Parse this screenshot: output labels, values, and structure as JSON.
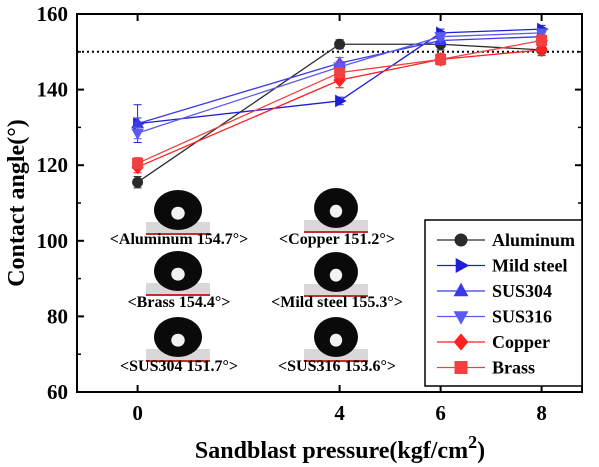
{
  "chart_data": {
    "type": "line",
    "title": "",
    "xlabel": "Sandblast pressure(kgf/cm",
    "xlabel_sup": "2",
    "xlabel_close": ")",
    "ylabel": "Contact angle(°)",
    "xlim": [
      -1.2,
      8.8
    ],
    "ylim": [
      60,
      160
    ],
    "x_ticks": [
      "0",
      "4",
      "6",
      "8"
    ],
    "y_ticks": [
      "60",
      "80",
      "100",
      "120",
      "140",
      "160"
    ],
    "reference_line": {
      "y": 150,
      "style": "dotted"
    },
    "legend_position": "bottom-right",
    "x": [
      0,
      4,
      6,
      8
    ],
    "series": [
      {
        "name": "Aluminum",
        "marker": "circle",
        "color": "#2b2b2b",
        "values": [
          115.5,
          152.0,
          152.0,
          150.5
        ],
        "err": [
          1.5,
          1.2,
          1.5,
          1.5
        ]
      },
      {
        "name": "Mild steel",
        "marker": "triangle-right",
        "color": "#1f1fd6",
        "values": [
          131.0,
          137.0,
          155.0,
          156.0
        ],
        "err": [
          5.0,
          1.0,
          1.0,
          1.0
        ]
      },
      {
        "name": "SUS304",
        "marker": "triangle-up",
        "color": "#3a3ae8",
        "values": [
          131.0,
          147.0,
          153.0,
          154.0
        ],
        "err": [
          1.5,
          1.5,
          1.0,
          1.0
        ]
      },
      {
        "name": "SUS316",
        "marker": "triangle-down",
        "color": "#5a5af0",
        "values": [
          128.5,
          146.0,
          154.0,
          155.0
        ],
        "err": [
          1.5,
          1.5,
          1.0,
          1.0
        ]
      },
      {
        "name": "Copper",
        "marker": "diamond",
        "color": "#ff2020",
        "values": [
          119.5,
          142.5,
          148.0,
          150.5
        ],
        "err": [
          1.5,
          2.0,
          1.5,
          1.5
        ]
      },
      {
        "name": "Brass",
        "marker": "square",
        "color": "#f04040",
        "values": [
          120.5,
          144.5,
          148.0,
          153.0
        ],
        "err": [
          1.5,
          4.0,
          1.5,
          1.5
        ]
      }
    ],
    "droplet_labels": [
      "<Aluminum 154.7°>",
      "<Copper 151.2°>",
      "<Brass 154.4°>",
      "<Mild steel 155.3°>",
      "<SUS304 151.7°>",
      "<SUS316 153.6°>"
    ]
  }
}
